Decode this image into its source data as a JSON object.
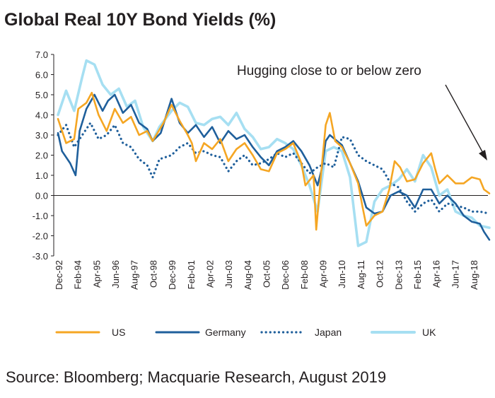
{
  "header": {
    "title": "Global Real 10Y Bond Yields (%)"
  },
  "footer": {
    "source": "Source: Bloomberg; Macquarie Research, August 2019"
  },
  "chart_data": {
    "type": "line",
    "title": "Global Real 10Y Bond Yields (%)",
    "xlabel": "",
    "ylabel": "",
    "ylim": [
      -3.0,
      7.0
    ],
    "y_ticks": [
      "7.0",
      "6.0",
      "5.0",
      "4.0",
      "3.0",
      "2.0",
      "1.0",
      "0.0",
      "-1.0",
      "-2.0",
      "-3.0"
    ],
    "x_range": [
      "1992-12",
      "2019-07"
    ],
    "x_ticks": [
      "Dec-92",
      "Feb-94",
      "Apr-95",
      "Jun-96",
      "Aug-97",
      "Oct-98",
      "Dec-99",
      "Feb-01",
      "Apr-02",
      "Jun-03",
      "Aug-04",
      "Oct-05",
      "Dec-06",
      "Feb-08",
      "Apr-09",
      "Jun-10",
      "Aug-11",
      "Oct-12",
      "Dec-13",
      "Feb-15",
      "Apr-16",
      "Jun-17",
      "Aug-18"
    ],
    "grid": false,
    "legend_position": "bottom",
    "annotation": {
      "text": "Hugging close to or below zero"
    },
    "series": [
      {
        "name": "US",
        "color": "#f5a623",
        "style": "solid",
        "points": [
          [
            "1992-12",
            3.8
          ],
          [
            "1993-06",
            2.6
          ],
          [
            "1993-12",
            2.8
          ],
          [
            "1994-03",
            4.3
          ],
          [
            "1994-09",
            4.6
          ],
          [
            "1995-01",
            5.1
          ],
          [
            "1995-06",
            4.0
          ],
          [
            "1995-12",
            3.2
          ],
          [
            "1996-06",
            4.3
          ],
          [
            "1996-12",
            3.6
          ],
          [
            "1997-06",
            3.9
          ],
          [
            "1997-12",
            3.0
          ],
          [
            "1998-06",
            3.2
          ],
          [
            "1998-10",
            2.7
          ],
          [
            "1999-06",
            3.6
          ],
          [
            "1999-12",
            4.5
          ],
          [
            "2000-06",
            3.7
          ],
          [
            "2000-12",
            3.0
          ],
          [
            "2001-03",
            2.6
          ],
          [
            "2001-06",
            1.7
          ],
          [
            "2001-12",
            2.6
          ],
          [
            "2002-06",
            2.3
          ],
          [
            "2002-12",
            2.8
          ],
          [
            "2003-06",
            1.7
          ],
          [
            "2003-12",
            2.3
          ],
          [
            "2004-06",
            2.6
          ],
          [
            "2004-12",
            2.0
          ],
          [
            "2005-06",
            1.3
          ],
          [
            "2005-12",
            1.2
          ],
          [
            "2006-06",
            2.1
          ],
          [
            "2006-12",
            2.3
          ],
          [
            "2007-06",
            2.6
          ],
          [
            "2007-12",
            1.6
          ],
          [
            "2008-03",
            0.5
          ],
          [
            "2008-09",
            1.0
          ],
          [
            "2008-11",
            -1.7
          ],
          [
            "2009-03",
            1.4
          ],
          [
            "2009-06",
            3.5
          ],
          [
            "2009-09",
            4.1
          ],
          [
            "2010-01",
            2.7
          ],
          [
            "2010-06",
            2.4
          ],
          [
            "2010-12",
            1.6
          ],
          [
            "2011-06",
            0.6
          ],
          [
            "2011-09",
            -0.5
          ],
          [
            "2011-12",
            -1.5
          ],
          [
            "2012-06",
            -1.0
          ],
          [
            "2012-12",
            -0.8
          ],
          [
            "2013-05",
            0.3
          ],
          [
            "2013-09",
            1.7
          ],
          [
            "2014-01",
            1.4
          ],
          [
            "2014-06",
            0.7
          ],
          [
            "2014-12",
            0.8
          ],
          [
            "2015-06",
            1.6
          ],
          [
            "2015-12",
            2.1
          ],
          [
            "2016-03",
            1.3
          ],
          [
            "2016-06",
            0.6
          ],
          [
            "2016-12",
            1.0
          ],
          [
            "2017-06",
            0.6
          ],
          [
            "2017-12",
            0.6
          ],
          [
            "2018-06",
            0.9
          ],
          [
            "2018-12",
            0.8
          ],
          [
            "2019-03",
            0.3
          ],
          [
            "2019-07",
            0.1
          ]
        ]
      },
      {
        "name": "Germany",
        "color": "#1f5f9b",
        "style": "solid",
        "points": [
          [
            "1992-12",
            3.1
          ],
          [
            "1993-03",
            2.2
          ],
          [
            "1993-09",
            1.6
          ],
          [
            "1994-01",
            1.0
          ],
          [
            "1994-04",
            3.2
          ],
          [
            "1994-09",
            4.3
          ],
          [
            "1995-03",
            5.0
          ],
          [
            "1995-09",
            4.2
          ],
          [
            "1996-01",
            4.7
          ],
          [
            "1996-06",
            5.0
          ],
          [
            "1996-12",
            4.1
          ],
          [
            "1997-06",
            4.5
          ],
          [
            "1997-12",
            3.6
          ],
          [
            "1998-06",
            3.3
          ],
          [
            "1998-10",
            2.7
          ],
          [
            "1999-04",
            3.1
          ],
          [
            "1999-12",
            4.8
          ],
          [
            "2000-06",
            3.6
          ],
          [
            "2000-12",
            3.1
          ],
          [
            "2001-06",
            3.5
          ],
          [
            "2001-12",
            2.9
          ],
          [
            "2002-06",
            3.4
          ],
          [
            "2002-12",
            2.6
          ],
          [
            "2003-06",
            3.2
          ],
          [
            "2003-12",
            2.8
          ],
          [
            "2004-06",
            3.0
          ],
          [
            "2004-12",
            2.4
          ],
          [
            "2005-06",
            1.9
          ],
          [
            "2005-12",
            1.5
          ],
          [
            "2006-06",
            2.2
          ],
          [
            "2006-12",
            2.4
          ],
          [
            "2007-06",
            2.7
          ],
          [
            "2007-12",
            2.2
          ],
          [
            "2008-06",
            1.5
          ],
          [
            "2008-12",
            0.5
          ],
          [
            "2009-03",
            1.3
          ],
          [
            "2009-06",
            2.7
          ],
          [
            "2009-09",
            3.0
          ],
          [
            "2010-06",
            2.5
          ],
          [
            "2010-12",
            1.6
          ],
          [
            "2011-06",
            0.7
          ],
          [
            "2011-12",
            -0.6
          ],
          [
            "2012-06",
            -0.9
          ],
          [
            "2012-12",
            -0.8
          ],
          [
            "2013-06",
            0.0
          ],
          [
            "2013-12",
            0.2
          ],
          [
            "2014-06",
            0.0
          ],
          [
            "2014-12",
            -0.6
          ],
          [
            "2015-06",
            0.3
          ],
          [
            "2015-12",
            0.3
          ],
          [
            "2016-06",
            -0.4
          ],
          [
            "2016-12",
            0.0
          ],
          [
            "2017-06",
            -0.4
          ],
          [
            "2017-12",
            -1.0
          ],
          [
            "2018-06",
            -1.3
          ],
          [
            "2018-12",
            -1.4
          ],
          [
            "2019-03",
            -1.8
          ],
          [
            "2019-07",
            -2.2
          ]
        ]
      },
      {
        "name": "Japan",
        "color": "#1f5f9b",
        "style": "dotted",
        "points": [
          [
            "1992-12",
            3.0
          ],
          [
            "1993-06",
            3.5
          ],
          [
            "1993-12",
            2.4
          ],
          [
            "1994-06",
            3.0
          ],
          [
            "1994-12",
            3.6
          ],
          [
            "1995-06",
            2.8
          ],
          [
            "1995-12",
            3.0
          ],
          [
            "1996-06",
            3.5
          ],
          [
            "1996-12",
            2.6
          ],
          [
            "1997-06",
            2.4
          ],
          [
            "1997-12",
            1.8
          ],
          [
            "1998-06",
            1.5
          ],
          [
            "1998-10",
            0.9
          ],
          [
            "1999-03",
            1.8
          ],
          [
            "1999-12",
            2.0
          ],
          [
            "2000-06",
            2.4
          ],
          [
            "2000-12",
            2.6
          ],
          [
            "2001-06",
            2.1
          ],
          [
            "2001-12",
            2.2
          ],
          [
            "2002-06",
            2.0
          ],
          [
            "2002-12",
            1.9
          ],
          [
            "2003-06",
            1.2
          ],
          [
            "2003-12",
            1.7
          ],
          [
            "2004-06",
            2.0
          ],
          [
            "2004-12",
            1.5
          ],
          [
            "2005-06",
            1.6
          ],
          [
            "2005-12",
            1.8
          ],
          [
            "2006-06",
            2.1
          ],
          [
            "2006-12",
            1.9
          ],
          [
            "2007-06",
            2.1
          ],
          [
            "2007-12",
            1.6
          ],
          [
            "2008-06",
            1.1
          ],
          [
            "2008-12",
            1.4
          ],
          [
            "2009-06",
            1.6
          ],
          [
            "2009-12",
            1.4
          ],
          [
            "2010-06",
            2.9
          ],
          [
            "2010-12",
            2.8
          ],
          [
            "2011-06",
            2.0
          ],
          [
            "2011-12",
            1.7
          ],
          [
            "2012-06",
            1.5
          ],
          [
            "2012-12",
            1.3
          ],
          [
            "2013-06",
            0.6
          ],
          [
            "2013-12",
            0.4
          ],
          [
            "2014-06",
            -0.3
          ],
          [
            "2014-12",
            -0.8
          ],
          [
            "2015-06",
            -0.4
          ],
          [
            "2015-12",
            -0.2
          ],
          [
            "2016-06",
            -0.8
          ],
          [
            "2016-12",
            -0.4
          ],
          [
            "2017-06",
            -0.5
          ],
          [
            "2017-12",
            -0.6
          ],
          [
            "2018-06",
            -0.8
          ],
          [
            "2018-12",
            -0.8
          ],
          [
            "2019-07",
            -0.9
          ]
        ]
      },
      {
        "name": "UK",
        "color": "#a6dff2",
        "style": "solid",
        "points": [
          [
            "1992-12",
            4.0
          ],
          [
            "1993-06",
            5.2
          ],
          [
            "1993-12",
            4.2
          ],
          [
            "1994-06",
            5.9
          ],
          [
            "1994-09",
            6.7
          ],
          [
            "1995-03",
            6.5
          ],
          [
            "1995-09",
            5.5
          ],
          [
            "1996-03",
            5.0
          ],
          [
            "1996-09",
            5.3
          ],
          [
            "1997-03",
            4.4
          ],
          [
            "1997-09",
            4.7
          ],
          [
            "1998-03",
            3.4
          ],
          [
            "1998-10",
            2.7
          ],
          [
            "1999-03",
            3.4
          ],
          [
            "1999-12",
            4.2
          ],
          [
            "2000-06",
            4.6
          ],
          [
            "2000-12",
            4.4
          ],
          [
            "2001-06",
            3.6
          ],
          [
            "2001-12",
            3.5
          ],
          [
            "2002-06",
            3.8
          ],
          [
            "2002-12",
            3.9
          ],
          [
            "2003-06",
            3.5
          ],
          [
            "2003-12",
            4.1
          ],
          [
            "2004-06",
            3.3
          ],
          [
            "2004-12",
            2.9
          ],
          [
            "2005-06",
            2.3
          ],
          [
            "2005-12",
            2.4
          ],
          [
            "2006-06",
            2.8
          ],
          [
            "2006-12",
            2.6
          ],
          [
            "2007-06",
            2.3
          ],
          [
            "2007-12",
            1.5
          ],
          [
            "2008-06",
            0.5
          ],
          [
            "2008-12",
            -0.8
          ],
          [
            "2009-06",
            2.2
          ],
          [
            "2009-12",
            2.4
          ],
          [
            "2010-06",
            2.2
          ],
          [
            "2010-12",
            0.9
          ],
          [
            "2011-06",
            -2.5
          ],
          [
            "2011-12",
            -2.3
          ],
          [
            "2012-06",
            -0.3
          ],
          [
            "2012-12",
            0.3
          ],
          [
            "2013-06",
            0.5
          ],
          [
            "2013-12",
            0.8
          ],
          [
            "2014-06",
            1.3
          ],
          [
            "2014-12",
            0.7
          ],
          [
            "2015-06",
            2.0
          ],
          [
            "2015-12",
            1.4
          ],
          [
            "2016-06",
            0.0
          ],
          [
            "2016-12",
            0.3
          ],
          [
            "2017-06",
            -0.8
          ],
          [
            "2017-12",
            -1.0
          ],
          [
            "2018-06",
            -1.1
          ],
          [
            "2018-12",
            -1.5
          ],
          [
            "2019-07",
            -1.6
          ]
        ]
      }
    ]
  }
}
